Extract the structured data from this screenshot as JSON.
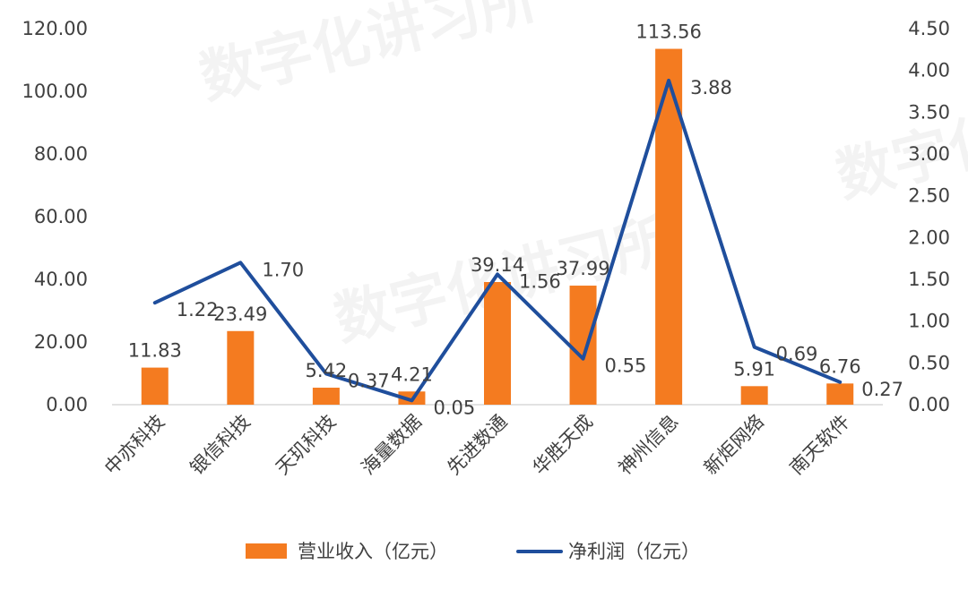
{
  "chart_data": {
    "type": "bar+line",
    "categories": [
      "中亦科技",
      "银信科技",
      "天玑科技",
      "海量数据",
      "先进数通",
      "华胜天成",
      "神州信息",
      "新炬网络",
      "南天软件"
    ],
    "series": [
      {
        "name": "营业收入（亿元）",
        "type": "bar",
        "axis": "left",
        "color": "#F47B20",
        "values": [
          11.83,
          23.49,
          5.42,
          4.21,
          39.14,
          37.99,
          113.56,
          5.91,
          6.76
        ],
        "labels": [
          "11.83",
          "23.49",
          "5.42",
          "4.21",
          "39.14",
          "37.99",
          "113.56",
          "5.91",
          "6.76"
        ]
      },
      {
        "name": "净利润（亿元）",
        "type": "line",
        "axis": "right",
        "color": "#1F4E9C",
        "values": [
          1.22,
          1.7,
          0.37,
          0.05,
          1.56,
          0.55,
          3.88,
          0.69,
          0.27
        ],
        "labels": [
          "1.22",
          "1.70",
          "0.37",
          "0.05",
          "1.56",
          "0.55",
          "3.88",
          "0.69",
          "0.27"
        ]
      }
    ],
    "left_axis": {
      "min": 0,
      "max": 120,
      "ticks": [
        "0.00",
        "20.00",
        "40.00",
        "60.00",
        "80.00",
        "100.00",
        "120.00"
      ]
    },
    "right_axis": {
      "min": 0,
      "max": 4.5,
      "ticks": [
        "0.00",
        "0.50",
        "1.00",
        "1.50",
        "2.00",
        "2.50",
        "3.00",
        "3.50",
        "4.00",
        "4.50"
      ]
    },
    "grid": false,
    "legend_position": "bottom",
    "watermark": "数字化讲习所"
  }
}
